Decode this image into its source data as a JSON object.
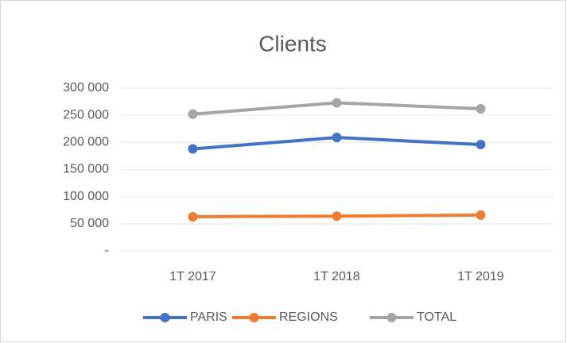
{
  "chart_data": {
    "type": "line",
    "title": "Clients",
    "categories": [
      "1T 2017",
      "1T 2018",
      "1T 2019"
    ],
    "series": [
      {
        "name": "PARIS",
        "color": "#4472c4",
        "values": [
          188000,
          209000,
          196000
        ]
      },
      {
        "name": "REGIONS",
        "color": "#ed7d31",
        "values": [
          63000,
          64000,
          66000
        ]
      },
      {
        "name": "TOTAL",
        "color": "#a5a5a5",
        "values": [
          252000,
          273000,
          262000
        ]
      }
    ],
    "ylim": [
      0,
      300000
    ],
    "yticks": [
      {
        "value": 0,
        "label": "-"
      },
      {
        "value": 50000,
        "label": "50 000"
      },
      {
        "value": 100000,
        "label": "100 000"
      },
      {
        "value": 150000,
        "label": "150 000"
      },
      {
        "value": 200000,
        "label": "200 000"
      },
      {
        "value": 250000,
        "label": "250 000"
      },
      {
        "value": 300000,
        "label": "300 000"
      }
    ],
    "grid": true,
    "legend": "bottom"
  }
}
